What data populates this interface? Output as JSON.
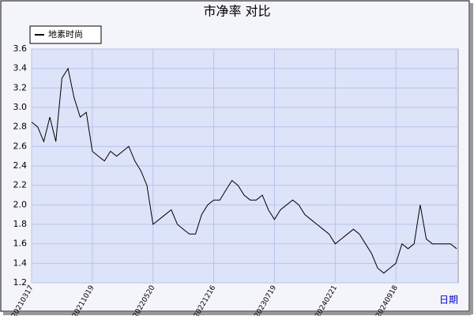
{
  "chart_data": {
    "type": "line",
    "title": "市净率  对比",
    "x_label": "日期",
    "categories": [
      "20210317",
      null,
      null,
      null,
      null,
      null,
      null,
      null,
      null,
      null,
      "20211019",
      null,
      null,
      null,
      null,
      null,
      null,
      null,
      null,
      null,
      "20220520",
      null,
      null,
      null,
      null,
      null,
      null,
      null,
      null,
      null,
      "20221216",
      null,
      null,
      null,
      null,
      null,
      null,
      null,
      null,
      null,
      "20230719",
      null,
      null,
      null,
      null,
      null,
      null,
      null,
      null,
      null,
      "20240221",
      null,
      null,
      null,
      null,
      null,
      null,
      null,
      null,
      null,
      "20240918",
      null,
      null,
      null,
      null,
      null,
      null,
      null,
      null,
      null,
      null
    ],
    "series": [
      {
        "name": "地素时尚",
        "color": "#000000",
        "values": [
          2.85,
          2.8,
          2.65,
          2.9,
          2.65,
          3.3,
          3.4,
          3.1,
          2.9,
          2.95,
          2.55,
          2.5,
          2.45,
          2.55,
          2.5,
          2.55,
          2.6,
          2.45,
          2.35,
          2.2,
          1.8,
          1.85,
          1.9,
          1.95,
          1.8,
          1.75,
          1.7,
          1.7,
          1.9,
          2.0,
          2.05,
          2.05,
          2.15,
          2.25,
          2.2,
          2.1,
          2.05,
          2.05,
          2.1,
          1.95,
          1.85,
          1.95,
          2.0,
          2.05,
          2.0,
          1.9,
          1.85,
          1.8,
          1.75,
          1.7,
          1.6,
          1.65,
          1.7,
          1.75,
          1.7,
          1.6,
          1.5,
          1.35,
          1.3,
          1.35,
          1.4,
          1.6,
          1.55,
          1.6,
          2.0,
          1.65,
          1.6,
          1.6,
          1.6,
          1.6,
          1.55
        ]
      }
    ],
    "ylim": [
      1.2,
      3.6
    ],
    "yticks": [
      1.2,
      1.4,
      1.6,
      1.8,
      {
        "value": 2,
        "label": "2.0"
      },
      2.2,
      2.4,
      2.6,
      2.8,
      {
        "value": 3,
        "label": "3.0"
      },
      3.2,
      3.4,
      3.6
    ],
    "grid": true
  }
}
